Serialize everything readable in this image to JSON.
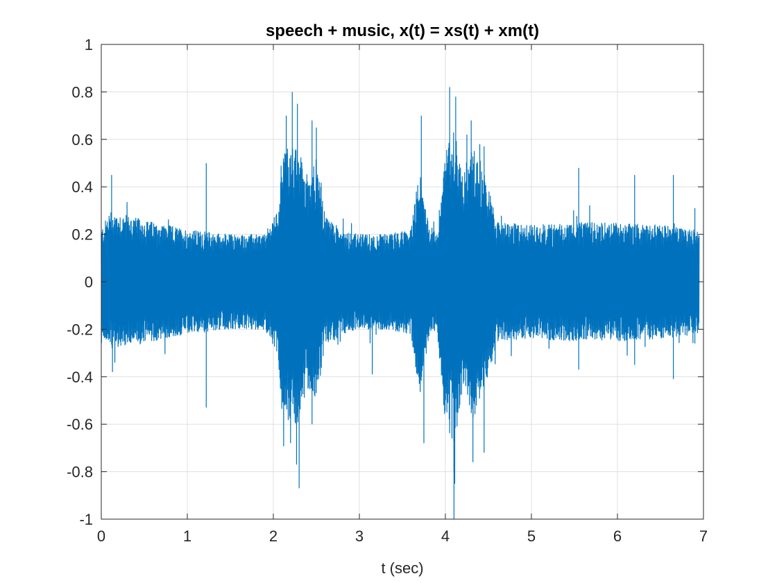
{
  "chart_data": {
    "type": "line",
    "title": "speech + music, x(t) = xs(t) + xm(t)",
    "xlabel": "t (sec)",
    "ylabel": "",
    "xlim": [
      0,
      7
    ],
    "ylim": [
      -1,
      1
    ],
    "xticks": [
      0,
      1,
      2,
      3,
      4,
      5,
      6,
      7
    ],
    "xtick_labels": [
      "0",
      "1",
      "2",
      "3",
      "4",
      "5",
      "6",
      "7"
    ],
    "yticks": [
      -1,
      -0.8,
      -0.6,
      -0.4,
      -0.2,
      0,
      0.2,
      0.4,
      0.6,
      0.8,
      1
    ],
    "ytick_labels": [
      "-1",
      "-0.8",
      "-0.6",
      "-0.4",
      "-0.2",
      "0",
      "0.2",
      "0.4",
      "0.6",
      "0.8",
      "1"
    ],
    "grid": true,
    "series": [
      {
        "color": "#0072BD",
        "duration": 6.95,
        "envelope": {
          "t": [
            0,
            0.1,
            0.5,
            1.0,
            1.5,
            1.9,
            2.05,
            2.1,
            2.2,
            2.3,
            2.4,
            2.5,
            2.6,
            2.8,
            3.0,
            3.3,
            3.6,
            3.7,
            3.8,
            3.9,
            4.0,
            4.1,
            4.2,
            4.3,
            4.4,
            4.5,
            4.6,
            5.0,
            5.5,
            6.0,
            6.5,
            6.95
          ],
          "upper": [
            0.22,
            0.3,
            0.26,
            0.22,
            0.2,
            0.2,
            0.3,
            0.55,
            0.58,
            0.55,
            0.45,
            0.52,
            0.28,
            0.22,
            0.2,
            0.2,
            0.22,
            0.48,
            0.25,
            0.2,
            0.55,
            0.65,
            0.45,
            0.58,
            0.52,
            0.4,
            0.25,
            0.24,
            0.25,
            0.25,
            0.24,
            0.22
          ],
          "lower": [
            -0.22,
            -0.28,
            -0.26,
            -0.22,
            -0.2,
            -0.2,
            -0.3,
            -0.55,
            -0.6,
            -0.6,
            -0.45,
            -0.5,
            -0.28,
            -0.22,
            -0.2,
            -0.2,
            -0.22,
            -0.48,
            -0.25,
            -0.2,
            -0.6,
            -0.7,
            -0.45,
            -0.6,
            -0.5,
            -0.4,
            -0.25,
            -0.24,
            -0.25,
            -0.25,
            -0.24,
            -0.22
          ]
        },
        "peaks": [
          {
            "t": 0.12,
            "v": 0.45
          },
          {
            "t": 0.13,
            "v": -0.38
          },
          {
            "t": 1.22,
            "v": 0.5
          },
          {
            "t": 1.22,
            "v": -0.53
          },
          {
            "t": 2.15,
            "v": 0.7
          },
          {
            "t": 2.2,
            "v": -0.68
          },
          {
            "t": 2.22,
            "v": 0.8
          },
          {
            "t": 2.27,
            "v": -0.77
          },
          {
            "t": 2.28,
            "v": 0.75
          },
          {
            "t": 2.3,
            "v": -0.87
          },
          {
            "t": 2.45,
            "v": 0.68
          },
          {
            "t": 2.45,
            "v": -0.6
          },
          {
            "t": 2.5,
            "v": 0.65
          },
          {
            "t": 3.15,
            "v": -0.39
          },
          {
            "t": 3.72,
            "v": 0.7
          },
          {
            "t": 3.75,
            "v": -0.68
          },
          {
            "t": 4.05,
            "v": 0.82
          },
          {
            "t": 4.1,
            "v": -0.8
          },
          {
            "t": 4.12,
            "v": 0.78
          },
          {
            "t": 4.1,
            "v": -1.0
          },
          {
            "t": 4.25,
            "v": 0.62
          },
          {
            "t": 4.3,
            "v": 0.68
          },
          {
            "t": 4.32,
            "v": -0.76
          },
          {
            "t": 4.45,
            "v": 0.57
          },
          {
            "t": 4.45,
            "v": -0.72
          },
          {
            "t": 5.55,
            "v": 0.48
          },
          {
            "t": 5.55,
            "v": -0.37
          },
          {
            "t": 6.2,
            "v": 0.45
          },
          {
            "t": 6.2,
            "v": -0.35
          },
          {
            "t": 6.65,
            "v": 0.45
          },
          {
            "t": 6.65,
            "v": -0.41
          },
          {
            "t": 6.9,
            "v": 0.31
          },
          {
            "t": 6.9,
            "v": -0.26
          }
        ]
      }
    ]
  }
}
